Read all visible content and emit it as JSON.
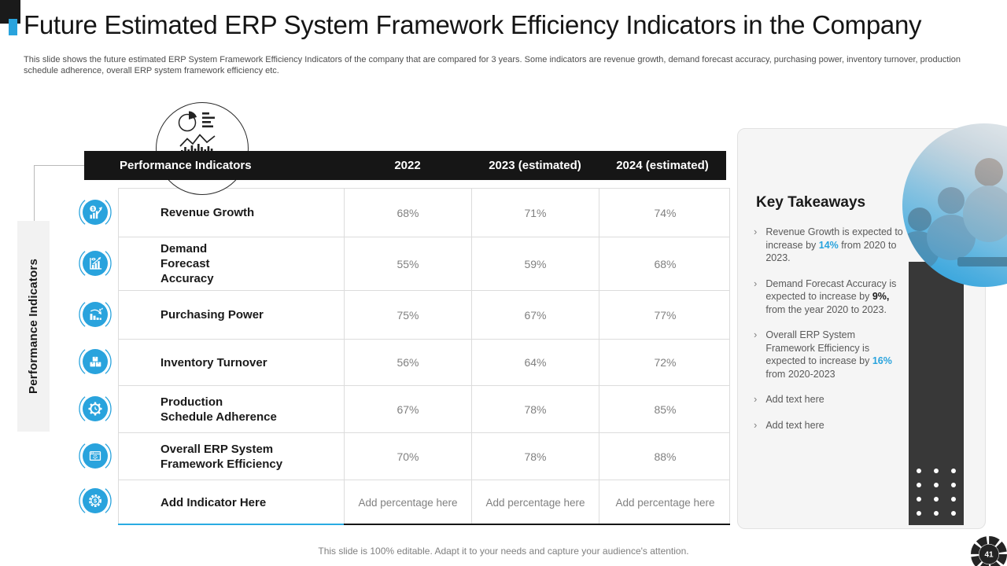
{
  "slide": {
    "title": "Future Estimated ERP System Framework Efficiency Indicators in the Company",
    "subtitle": "This slide shows the future estimated ERP System Framework Efficiency Indicators of the company that are compared for 3 years. Some indicators are revenue growth, demand forecast accuracy, purchasing power, inventory turnover,  production schedule adherence, overall ERP system framework efficiency etc.",
    "footer": "This slide is 100% editable. Adapt it to your needs and capture your audience's attention.",
    "page_number": "41"
  },
  "colors": {
    "accent_blue": "#29A3DD",
    "header_bg": "#161616",
    "panel_bg": "#F5F5F5",
    "dark_bar": "#383838",
    "value_text": "#808080"
  },
  "icons": {
    "header_graphic": "analytics-charts-icon",
    "bullet_marker": "›",
    "row_icons": [
      "revenue-growth-icon",
      "demand-forecast-accuracy-icon",
      "purchasing-power-icon",
      "inventory-turnover-icon",
      "production-schedule-adherence-icon",
      "overall-erp-framework-efficiency-icon",
      "add-indicator-icon"
    ],
    "page_badge": "shutter-gear-badge"
  },
  "table": {
    "side_label": "Performance Indicators",
    "columns": [
      "Performance Indicators",
      "2022",
      "2023 (estimated)",
      "2024 (estimated)"
    ],
    "rows": [
      {
        "icon": "revenue-growth-icon",
        "label": "Revenue Growth",
        "values": [
          "68%",
          "71%",
          "74%"
        ]
      },
      {
        "icon": "demand-forecast-accuracy-icon",
        "label": "Demand\nForecast\nAccuracy",
        "values": [
          "55%",
          "59%",
          "68%"
        ]
      },
      {
        "icon": "purchasing-power-icon",
        "label": "Purchasing Power",
        "values": [
          "75%",
          "67%",
          "77%"
        ]
      },
      {
        "icon": "inventory-turnover-icon",
        "label": "Inventory Turnover",
        "values": [
          "56%",
          "64%",
          "72%"
        ]
      },
      {
        "icon": "production-schedule-adherence-icon",
        "label": "Production\nSchedule Adherence",
        "values": [
          "67%",
          "78%",
          "85%"
        ]
      },
      {
        "icon": "overall-erp-framework-efficiency-icon",
        "label": "Overall ERP System\nFramework Efficiency",
        "values": [
          "70%",
          "78%",
          "88%"
        ]
      },
      {
        "icon": "add-indicator-icon",
        "label": "Add Indicator Here",
        "values": [
          "Add percentage here",
          "Add percentage here",
          "Add percentage here"
        ]
      }
    ]
  },
  "key_takeaways": {
    "title": "Key Takeaways",
    "bullets": [
      {
        "segments": [
          {
            "text": "Revenue Growth is expected to increase by "
          },
          {
            "text": "14%",
            "style": "bold-blue"
          },
          {
            "text": " from 2020 to 2023."
          }
        ]
      },
      {
        "segments": [
          {
            "text": "Demand Forecast Accuracy is expected to increase by "
          },
          {
            "text": "9%,",
            "style": "bold-dark"
          },
          {
            "text": " from the year 2020 to 2023."
          }
        ]
      },
      {
        "segments": [
          {
            "text": "Overall ERP System Framework Efficiency is expected to increase by "
          },
          {
            "text": "16%",
            "style": "bold-blue"
          },
          {
            "text": " from 2020-2023"
          }
        ]
      },
      {
        "segments": [
          {
            "text": "Add text here"
          }
        ]
      },
      {
        "segments": [
          {
            "text": "Add text here"
          }
        ]
      }
    ]
  }
}
